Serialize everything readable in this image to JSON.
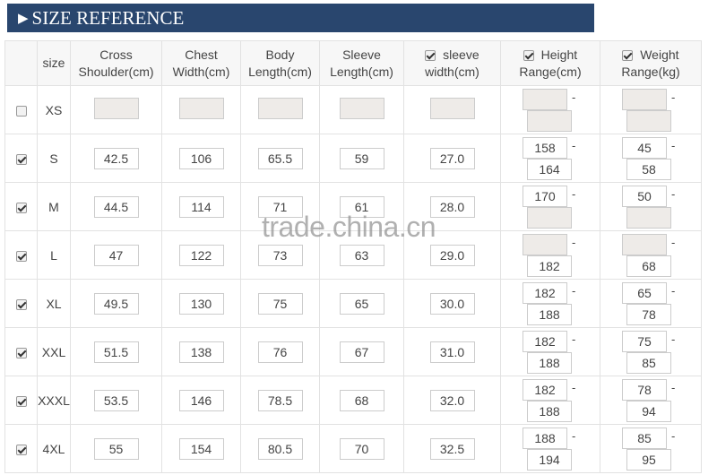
{
  "title": "SIZE REFERENCE",
  "columns": {
    "size": "size",
    "cross_shoulder": "Cross Shoulder(cm)",
    "chest_width": "Chest Width(cm)",
    "body_length": "Body Length(cm)",
    "sleeve_length": "Sleeve Length(cm)",
    "sleeve_width": "sleeve width(cm)",
    "height_range": "Height Range(cm)",
    "weight_range": "Weight Range(kg)"
  },
  "header_checks": {
    "sleeve_width": true,
    "height_range": true,
    "weight_range": true
  },
  "rows": [
    {
      "checked": false,
      "size": "XS",
      "cross": "",
      "chest": "",
      "body": "",
      "sleeve": "",
      "sleeve_width": "",
      "height_min": "",
      "height_max": "",
      "weight_min": "",
      "weight_max": ""
    },
    {
      "checked": true,
      "size": "S",
      "cross": "42.5",
      "chest": "106",
      "body": "65.5",
      "sleeve": "59",
      "sleeve_width": "27.0",
      "height_min": "158",
      "height_max": "164",
      "weight_min": "45",
      "weight_max": "58"
    },
    {
      "checked": true,
      "size": "M",
      "cross": "44.5",
      "chest": "114",
      "body": "71",
      "sleeve": "61",
      "sleeve_width": "28.0",
      "height_min": "170",
      "height_max": "",
      "weight_min": "50",
      "weight_max": ""
    },
    {
      "checked": true,
      "size": "L",
      "cross": "47",
      "chest": "122",
      "body": "73",
      "sleeve": "63",
      "sleeve_width": "29.0",
      "height_min": "",
      "height_max": "182",
      "weight_min": "",
      "weight_max": "68"
    },
    {
      "checked": true,
      "size": "XL",
      "cross": "49.5",
      "chest": "130",
      "body": "75",
      "sleeve": "65",
      "sleeve_width": "30.0",
      "height_min": "182",
      "height_max": "188",
      "weight_min": "65",
      "weight_max": "78"
    },
    {
      "checked": true,
      "size": "XXL",
      "cross": "51.5",
      "chest": "138",
      "body": "76",
      "sleeve": "67",
      "sleeve_width": "31.0",
      "height_min": "182",
      "height_max": "188",
      "weight_min": "75",
      "weight_max": "85"
    },
    {
      "checked": true,
      "size": "XXXL",
      "cross": "53.5",
      "chest": "146",
      "body": "78.5",
      "sleeve": "68",
      "sleeve_width": "32.0",
      "height_min": "182",
      "height_max": "188",
      "weight_min": "78",
      "weight_max": "94"
    },
    {
      "checked": true,
      "size": "4XL",
      "cross": "55",
      "chest": "154",
      "body": "80.5",
      "sleeve": "70",
      "sleeve_width": "32.5",
      "height_min": "188",
      "height_max": "194",
      "weight_min": "85",
      "weight_max": "95"
    }
  ],
  "range_separator": "-",
  "watermark": "trade.china.cn",
  "colors": {
    "header_bar": "#29466e"
  }
}
